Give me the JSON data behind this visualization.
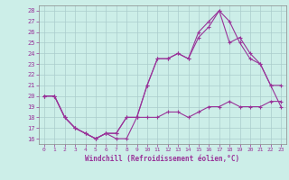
{
  "xlabel": "Windchill (Refroidissement éolien,°C)",
  "xlim": [
    -0.5,
    23.5
  ],
  "ylim": [
    15.5,
    28.5
  ],
  "xticks": [
    0,
    1,
    2,
    3,
    4,
    5,
    6,
    7,
    8,
    9,
    10,
    11,
    12,
    13,
    14,
    15,
    16,
    17,
    18,
    19,
    20,
    21,
    22,
    23
  ],
  "yticks": [
    16,
    17,
    18,
    19,
    20,
    21,
    22,
    23,
    24,
    25,
    26,
    27,
    28
  ],
  "bg_color": "#cceee8",
  "grid_color": "#aacccc",
  "line_color": "#993399",
  "line1_x": [
    0,
    1,
    2,
    3,
    4,
    5,
    6,
    7,
    8,
    9,
    10,
    11,
    12,
    13,
    14,
    15,
    16,
    17,
    18,
    19,
    20,
    21,
    22,
    23
  ],
  "line1_y": [
    20,
    20,
    18,
    17,
    16.5,
    16,
    16.5,
    16,
    16,
    18,
    18,
    18,
    18.5,
    18.5,
    18,
    18.5,
    19,
    19,
    19.5,
    19,
    19,
    19,
    19.5,
    19.5
  ],
  "line2_x": [
    0,
    1,
    2,
    3,
    4,
    5,
    6,
    7,
    8,
    9,
    10,
    11,
    12,
    13,
    14,
    15,
    16,
    17,
    18,
    19,
    20,
    21,
    22,
    23
  ],
  "line2_y": [
    20,
    20,
    18,
    17,
    16.5,
    16,
    16.5,
    16.5,
    18,
    18,
    21,
    23.5,
    23.5,
    24,
    23.5,
    25.5,
    26.5,
    28,
    27,
    25,
    23.5,
    23,
    21,
    21
  ],
  "line3_x": [
    0,
    1,
    2,
    3,
    4,
    5,
    6,
    7,
    8,
    9,
    10,
    11,
    12,
    13,
    14,
    15,
    16,
    17,
    18,
    19,
    20,
    21,
    22,
    23
  ],
  "line3_y": [
    20,
    20,
    18,
    17,
    16.5,
    16,
    16.5,
    16.5,
    18,
    18,
    21,
    23.5,
    23.5,
    24,
    23.5,
    26,
    27,
    28,
    25,
    25.5,
    24,
    23,
    21,
    19
  ]
}
